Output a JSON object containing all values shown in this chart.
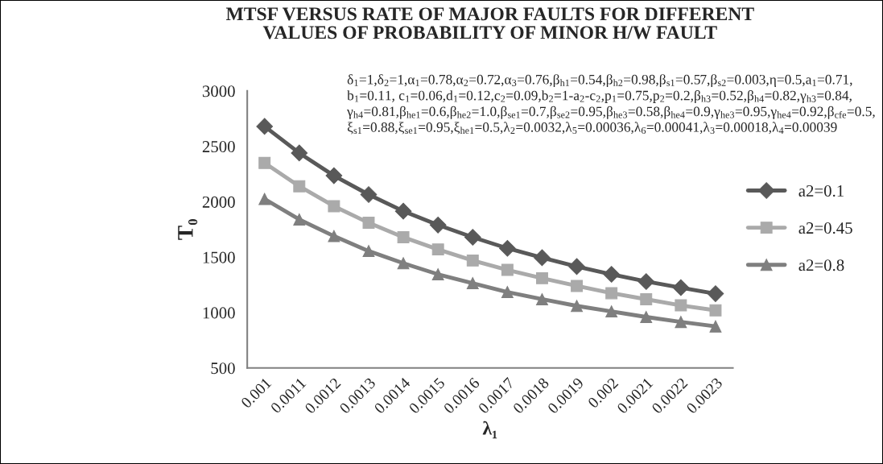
{
  "chart_data": {
    "type": "line",
    "title": "MTSF VERSUS RATE OF MAJOR FAULTS FOR DIFFERENT\nVALUES OF PROBABILITY OF MINOR H/W FAULT",
    "xlabel": "λ₁",
    "ylabel": "T₀",
    "annotations": [
      "δ$_{1}$=1,δ$_{2}$=1,α$_{1}$=0.78,α$_{2}$=0.72,α$_{3}$=0.76,β$_{h1}$=0.54,β$_{h2}$=0.98,β$_{s1}$=0.57,β$_{s2}$=0.003,η=0.5,a$_{1}$=0.71,\nb$_{1}$=0.11, c$_{1}$=0.06,d$_{1}$=0.12,c$_{2}$=0.09,b$_{2}$=1-a$_{2}$-c$_{2}$,p$_{1}$=0.75,p$_{2}$=0.2,β$_{h3}$=0.52,β$_{h4}$=0.82,γ$_{h3}$=0.84,\nγ$_{h4}$=0.81,β$_{he1}$=0.6,β$_{he2}$=1.0,β$_{se1}$=0.7,β$_{se2}$=0.95,β$_{he3}$=0.58,β$_{he4}$=0.9,γ$_{he3}$=0.95,γ$_{he4}$=0.92,β$_{cfe}$=0.5,\nξ$_{s1}$=0.88,ξ$_{se1}$=0.95,ξ$_{he1}$=0.5,λ$_{2}$=0.0032,λ$_{5}$=0.00036,λ$_{6}$=0.00041,λ$_{3}$=0.00018,λ$_{4}$=0.00039"
    ],
    "categories": [
      "0.001",
      "0.0011",
      "0.0012",
      "0.0013",
      "0.0014",
      "0.0015",
      "0.0016",
      "0.0017",
      "0.0018",
      "0.0019",
      "0.002",
      "0.0021",
      "0.0022",
      "0.0023"
    ],
    "series": [
      {
        "name": "a2=0.1",
        "color": "#595959",
        "marker": "diamond",
        "values": [
          2680,
          2440,
          2235,
          2065,
          1915,
          1790,
          1680,
          1580,
          1495,
          1415,
          1345,
          1280,
          1225,
          1170
        ]
      },
      {
        "name": "a2=0.45",
        "color": "#aaaaaa",
        "marker": "square",
        "values": [
          2350,
          2140,
          1960,
          1810,
          1680,
          1570,
          1470,
          1385,
          1310,
          1240,
          1175,
          1120,
          1065,
          1020
        ]
      },
      {
        "name": "a2=0.8",
        "color": "#7f7f7f",
        "marker": "triangle",
        "values": [
          2025,
          1840,
          1690,
          1555,
          1445,
          1345,
          1265,
          1185,
          1120,
          1060,
          1010,
          960,
          915,
          875
        ]
      }
    ],
    "ylim": [
      500,
      3000
    ],
    "yticks": [
      500,
      1000,
      1500,
      2000,
      2500,
      3000
    ],
    "grid": false,
    "legend": "right",
    "line_style": "solid"
  }
}
